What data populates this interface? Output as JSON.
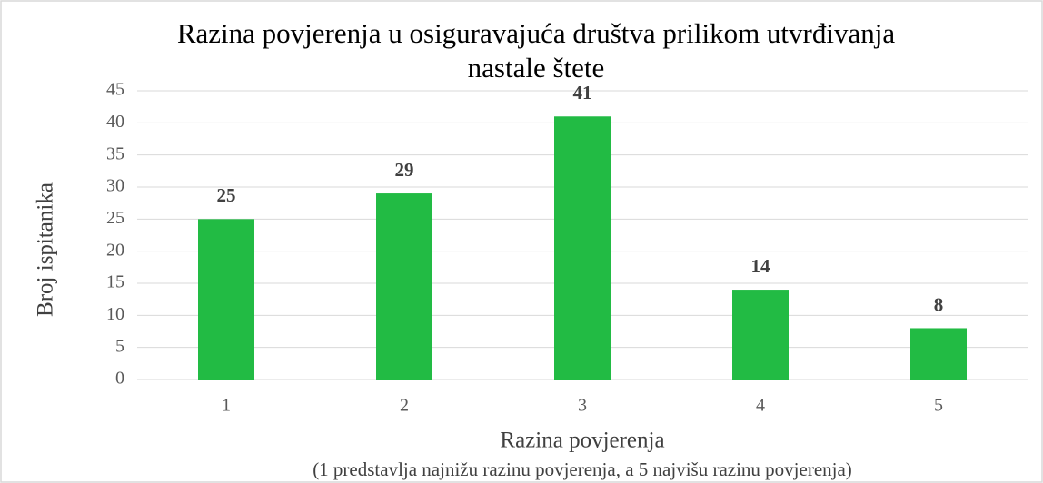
{
  "chart_data": {
    "type": "bar",
    "title": "Razina povjerenja u osiguravajuća društva prilikom utvrđivanja nastale štete",
    "xlabel": "Razina povjerenja",
    "xlabel_note": "(1 predstavlja najnižu razinu povjerenja, a 5 najvišu razinu povjerenja)",
    "ylabel": "Broj ispitanika",
    "categories": [
      "1",
      "2",
      "3",
      "4",
      "5"
    ],
    "values": [
      25,
      29,
      41,
      14,
      8
    ],
    "color": "#22bb44",
    "ylim": [
      0,
      45
    ],
    "yticks": [
      0,
      5,
      10,
      15,
      20,
      25,
      30,
      35,
      40,
      45
    ],
    "grid": true
  }
}
